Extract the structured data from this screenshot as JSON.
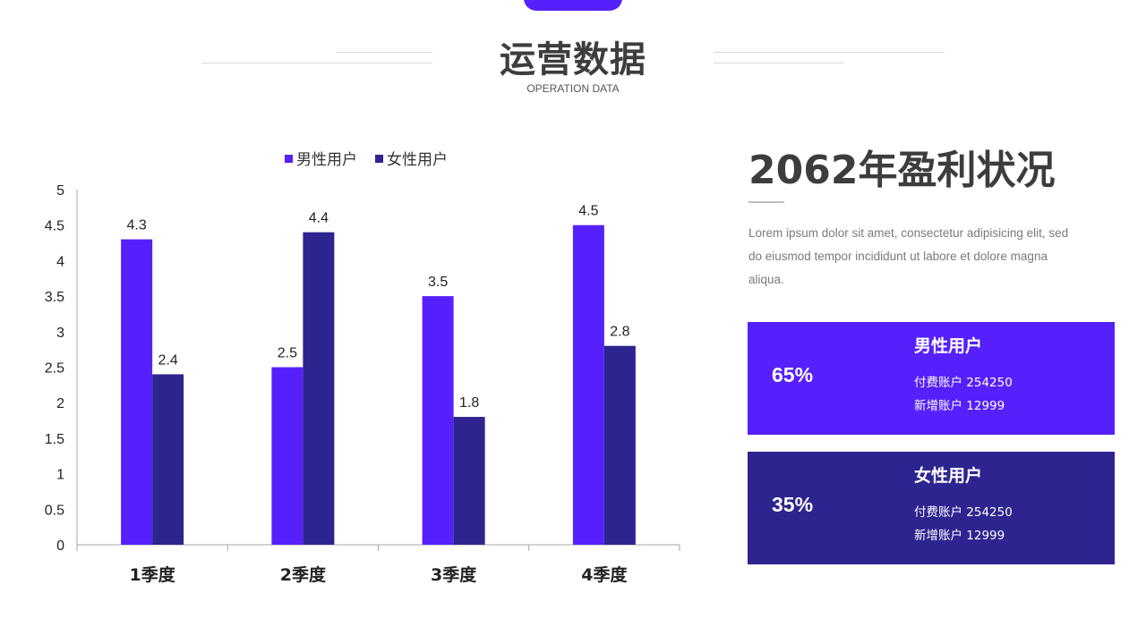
{
  "header": {
    "title": "运营数据",
    "subtitle": "OPERATION DATA"
  },
  "colors": {
    "male": "#5520fb",
    "female": "#2e2490"
  },
  "chart_data": {
    "type": "bar",
    "categories": [
      "1季度",
      "2季度",
      "3季度",
      "4季度"
    ],
    "series": [
      {
        "name": "男性用户",
        "values": [
          4.3,
          2.5,
          3.5,
          4.5
        ]
      },
      {
        "name": "女性用户",
        "values": [
          2.4,
          4.4,
          1.8,
          2.8
        ]
      }
    ],
    "ylim": [
      0,
      5
    ],
    "yticks": [
      "0",
      "0.5",
      "1",
      "1.5",
      "2",
      "2.5",
      "3",
      "3.5",
      "4",
      "4.5",
      "5"
    ],
    "legend": "top",
    "grid": false,
    "title": "",
    "xlabel": "",
    "ylabel": ""
  },
  "summary": {
    "heading": "2062年盈利状况",
    "description": "Lorem ipsum dolor sit amet, consectetur adipisicing elit, sed do eiusmod tempor incididunt ut labore et dolore magna aliqua."
  },
  "cards": [
    {
      "name": "男性用户",
      "percent": "65%",
      "line1": "付费账户 254250",
      "line2": "新增账户 12999"
    },
    {
      "name": "女性用户",
      "percent": "35%",
      "line1": "付费账户 254250",
      "line2": "新增账户 12999"
    }
  ]
}
